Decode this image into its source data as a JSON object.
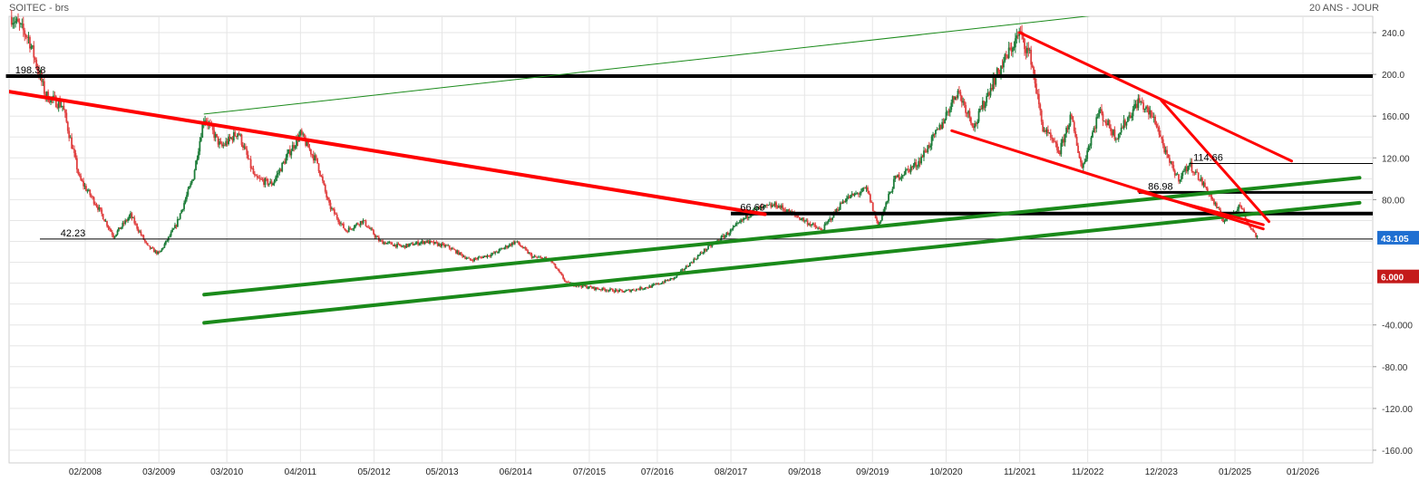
{
  "header": {
    "title": "SOITEC - brs",
    "timeframe": "20 ANS - JOUR"
  },
  "chart_data": {
    "type": "candlestick",
    "y_ticks": [
      "240.0",
      "200.0",
      "160.00",
      "120.00",
      "80.00",
      "-40.000",
      "-80.00",
      "-120.00",
      "-160.00"
    ],
    "y_tick_values": [
      240,
      200,
      160,
      120,
      80,
      -40,
      -80,
      -120,
      -160
    ],
    "x_ticks": [
      "02/2008",
      "03/2009",
      "03/2010",
      "04/2011",
      "05/2012",
      "05/2013",
      "06/2014",
      "07/2015",
      "07/2016",
      "08/2017",
      "09/2018",
      "09/2019",
      "10/2020",
      "11/2021",
      "11/2022",
      "12/2023",
      "01/2025",
      "01/2026"
    ],
    "grid": true,
    "colors": {
      "up": "#1e7d3a",
      "down": "#e04040",
      "resistance": "#ff0000",
      "support": "#1a8a1a",
      "level": "#000000",
      "price_tag": "#1f6fd1",
      "alt_tag": "#c41a1a"
    },
    "level_labels": [
      {
        "text": "198.38",
        "value": 198.38
      },
      {
        "text": "42.23",
        "value": 42.23
      },
      {
        "text": "114.66",
        "value": 114.66
      },
      {
        "text": "86.98",
        "value": 86.98
      },
      {
        "text": "66.69",
        "value": 66.69
      }
    ],
    "right_tags": [
      {
        "text": "43.105",
        "value": 43.105,
        "color": "#1f6fd1"
      },
      {
        "text": "6.000",
        "value": 6.0,
        "color": "#c41a1a"
      }
    ],
    "price_path": [
      [
        "2007-01",
        255
      ],
      [
        "2007-04",
        235
      ],
      [
        "2007-07",
        180
      ],
      [
        "2007-10",
        170
      ],
      [
        "2008-01",
        100
      ],
      [
        "2008-04",
        75
      ],
      [
        "2008-07",
        45
      ],
      [
        "2008-10",
        65
      ],
      [
        "2009-01",
        35
      ],
      [
        "2009-03",
        28
      ],
      [
        "2009-06",
        55
      ],
      [
        "2009-09",
        100
      ],
      [
        "2009-11",
        160
      ],
      [
        "2010-02",
        130
      ],
      [
        "2010-05",
        145
      ],
      [
        "2010-08",
        100
      ],
      [
        "2010-11",
        95
      ],
      [
        "2011-02",
        125
      ],
      [
        "2011-04",
        143
      ],
      [
        "2011-07",
        115
      ],
      [
        "2011-09",
        75
      ],
      [
        "2011-12",
        50
      ],
      [
        "2012-03",
        60
      ],
      [
        "2012-06",
        40
      ],
      [
        "2012-10",
        35
      ],
      [
        "2013-02",
        40
      ],
      [
        "2013-06",
        35
      ],
      [
        "2013-10",
        22
      ],
      [
        "2014-02",
        28
      ],
      [
        "2014-06",
        40
      ],
      [
        "2014-09",
        25
      ],
      [
        "2014-12",
        23
      ],
      [
        "2015-03",
        0
      ],
      [
        "2015-08",
        -5
      ],
      [
        "2016-01",
        -8
      ],
      [
        "2016-06",
        -3
      ],
      [
        "2016-10",
        5
      ],
      [
        "2017-03",
        30
      ],
      [
        "2017-08",
        50
      ],
      [
        "2017-12",
        70
      ],
      [
        "2018-04",
        75
      ],
      [
        "2018-09",
        60
      ],
      [
        "2018-12",
        50
      ],
      [
        "2019-04",
        80
      ],
      [
        "2019-08",
        90
      ],
      [
        "2019-10",
        55
      ],
      [
        "2020-01",
        100
      ],
      [
        "2020-05",
        115
      ],
      [
        "2020-09",
        150
      ],
      [
        "2020-12",
        185
      ],
      [
        "2021-03",
        150
      ],
      [
        "2021-06",
        190
      ],
      [
        "2021-09",
        220
      ],
      [
        "2021-11",
        240
      ],
      [
        "2022-01",
        215
      ],
      [
        "2022-03",
        150
      ],
      [
        "2022-06",
        125
      ],
      [
        "2022-08",
        160
      ],
      [
        "2022-10",
        110
      ],
      [
        "2023-01",
        165
      ],
      [
        "2023-04",
        140
      ],
      [
        "2023-08",
        175
      ],
      [
        "2023-11",
        155
      ],
      [
        "2024-01",
        120
      ],
      [
        "2024-03",
        100
      ],
      [
        "2024-05",
        114
      ],
      [
        "2024-08",
        90
      ],
      [
        "2024-11",
        60
      ],
      [
        "2025-02",
        75
      ],
      [
        "2025-03",
        60
      ],
      [
        "2025-05",
        43.105
      ]
    ],
    "trendlines": [
      {
        "color": "#ff0000",
        "width": 4,
        "from": [
          "2006-12",
          184
        ],
        "to": [
          "2018-02",
          66
        ]
      },
      {
        "color": "#1a8a1a",
        "width": 1,
        "from": [
          "2009-11",
          162
        ],
        "to": [
          "2023-06",
          260
        ]
      },
      {
        "color": "#1a8a1a",
        "width": 4,
        "from": [
          "2009-11",
          -11
        ],
        "to": [
          "2026-11",
          101
        ]
      },
      {
        "color": "#1a8a1a",
        "width": 4,
        "from": [
          "2009-11",
          -38
        ],
        "to": [
          "2026-11",
          77
        ]
      },
      {
        "color": "#ff0000",
        "width": 3,
        "from": [
          "2021-11",
          240
        ],
        "to": [
          "2025-11",
          117
        ]
      },
      {
        "color": "#ff0000",
        "width": 3,
        "from": [
          "2020-11",
          146
        ],
        "to": [
          "2025-06",
          52
        ]
      },
      {
        "color": "#ff0000",
        "width": 3,
        "from": [
          "2023-12",
          175
        ],
        "to": [
          "2025-07",
          59
        ]
      },
      {
        "color": "#ff0000",
        "width": 3,
        "from": [
          "2023-08",
          88
        ],
        "to": [
          "2025-06",
          56
        ]
      }
    ],
    "horizontal_levels": [
      {
        "value": 198.38,
        "from": "2006-12",
        "to": "2027-03",
        "color": "#000000",
        "width": 4
      },
      {
        "value": 42.23,
        "from": "2007-06",
        "to": "2027-03",
        "color": "#000000",
        "width": 1
      },
      {
        "value": 114.66,
        "from": "2024-05",
        "to": "2027-03",
        "color": "#000000",
        "width": 1
      },
      {
        "value": 86.98,
        "from": "2023-08",
        "to": "2027-03",
        "color": "#000000",
        "width": 3
      },
      {
        "value": 66.69,
        "from": "2017-08",
        "to": "2027-03",
        "color": "#000000",
        "width": 4
      }
    ]
  }
}
